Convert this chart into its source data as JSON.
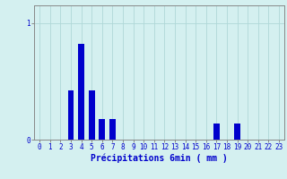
{
  "title": "",
  "xlabel": "Précipitations 6min ( mm )",
  "ylabel": "",
  "hours": [
    0,
    1,
    2,
    3,
    4,
    5,
    6,
    7,
    8,
    9,
    10,
    11,
    12,
    13,
    14,
    15,
    16,
    17,
    18,
    19,
    20,
    21,
    22,
    23
  ],
  "values": [
    0,
    0,
    0,
    0.42,
    0.82,
    0.42,
    0.18,
    0.18,
    0,
    0,
    0,
    0,
    0,
    0,
    0,
    0,
    0,
    0.14,
    0,
    0.14,
    0,
    0,
    0,
    0
  ],
  "bar_color": "#0000cc",
  "bg_color": "#d4f0f0",
  "yticks": [
    0,
    1
  ],
  "ylim": [
    0,
    1.15
  ],
  "xlim": [
    -0.5,
    23.5
  ],
  "grid_color": "#b0d8d8",
  "axis_color": "#888888",
  "tick_color": "#0000cc",
  "label_color": "#0000cc",
  "label_fontsize": 7,
  "tick_fontsize": 5.5
}
